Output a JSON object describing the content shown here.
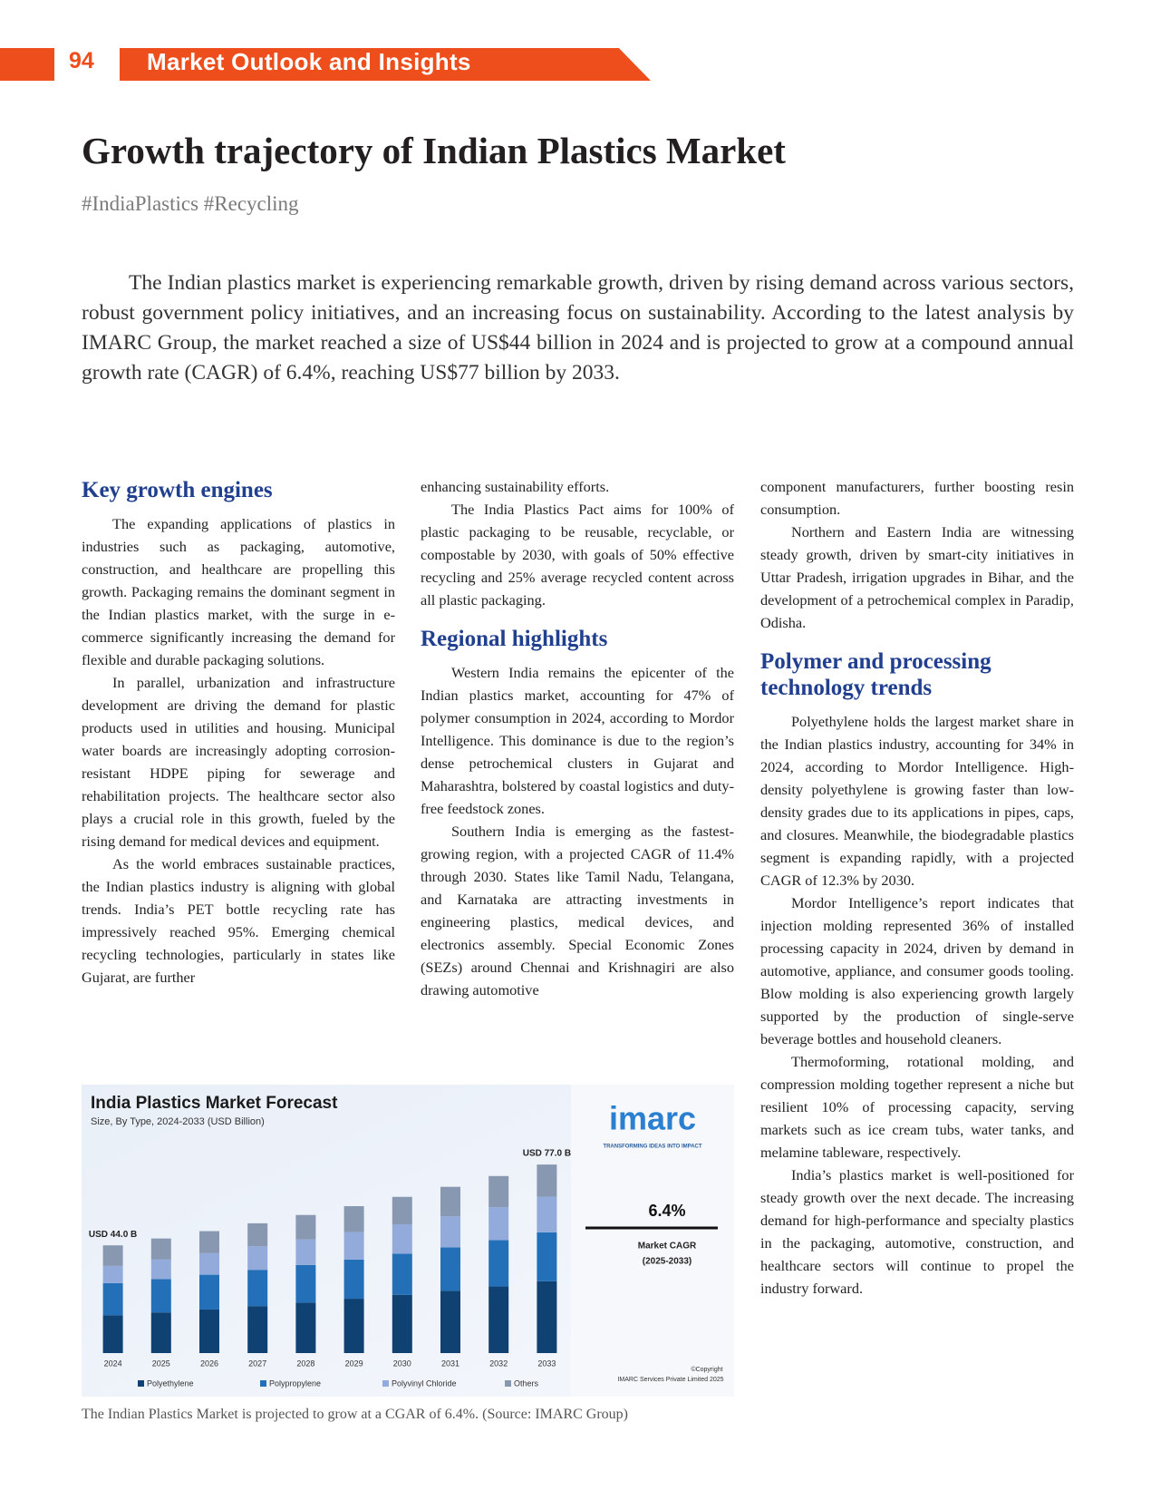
{
  "header": {
    "page_number": "94",
    "section": "Market Outlook and Insights"
  },
  "article": {
    "title": "Growth trajectory of Indian Plastics Market",
    "tags": "#IndiaPlastics #Recycling",
    "intro": "The Indian plastics market is experiencing remarkable growth, driven by rising demand across various sectors, robust government policy initiatives, and an increasing focus on sustainability. According to the latest analysis by IMARC Group, the market reached a size of US$44 billion in 2024 and is projected to grow at a compound annual growth rate (CAGR) of 6.4%, reaching US$77 billion by 2033.",
    "columns": [
      [
        {
          "type": "heading",
          "text": "Key growth engines"
        },
        {
          "type": "paragraph",
          "text": "The expanding applications of plastics in industries such as packaging, automotive, construction, and healthcare are propelling this growth. Packaging remains the dominant segment in the Indian plastics market, with the surge in e-commerce significantly increasing the demand for flexible and durable packaging solutions."
        },
        {
          "type": "paragraph",
          "text": "In parallel, urbanization and infrastructure development are driving the demand for plastic products used in utilities and housing. Municipal water boards are increasingly adopting corrosion-resistant HDPE piping for sewerage and rehabilitation projects. The healthcare sector also plays a crucial role in this growth, fueled by the rising demand for medical devices and equipment."
        },
        {
          "type": "paragraph",
          "text": "As the world embraces sustainable practices, the Indian plastics industry is aligning with global trends. India’s PET bottle recycling rate has impressively reached 95%. Emerging chemical recycling technologies, particularly in states like Gujarat, are further"
        }
      ],
      [
        {
          "type": "continuation",
          "text": "enhancing sustainability efforts."
        },
        {
          "type": "paragraph",
          "text": "The India Plastics Pact aims for 100% of plastic packaging to be reusable, recyclable, or compostable by 2030, with goals of 50% effective recycling and 25% average recycled content across all plastic packaging."
        },
        {
          "type": "heading",
          "text": "Regional highlights"
        },
        {
          "type": "paragraph",
          "text": "Western India remains the epicenter of the Indian plastics market, accounting for 47% of polymer consumption in 2024, according to Mordor Intelligence. This dominance is due to the region’s dense petrochemical clusters in Gujarat and Maharashtra, bolstered by coastal logistics and duty-free feedstock zones."
        },
        {
          "type": "paragraph",
          "text": "Southern India is emerging as the fastest-growing region, with a projected CAGR of 11.4% through 2030. States like Tamil Nadu, Telangana, and Karnataka are attracting investments in engineering plastics, medical devices, and electronics assembly. Special Economic Zones (SEZs) around Chennai and Krishnagiri are also drawing automotive"
        }
      ],
      [
        {
          "type": "continuation",
          "text": "component manufacturers, further boosting resin consumption."
        },
        {
          "type": "paragraph",
          "text": "Northern and Eastern India are witnessing steady growth, driven by smart-city initiatives in Uttar Pradesh, irrigation upgrades in Bihar, and the development of a petrochemical complex in Paradip, Odisha."
        },
        {
          "type": "heading",
          "text": "Polymer and processing technology trends"
        },
        {
          "type": "paragraph",
          "text": "Polyethylene holds the largest market share in the Indian plastics industry, accounting for 34% in 2024, according to Mordor Intelligence. High-density polyethylene is growing faster than low-density grades due to its applications in pipes, caps, and closures. Meanwhile, the biodegradable plastics segment is expanding rapidly, with a projected CAGR of 12.3% by 2030."
        },
        {
          "type": "paragraph",
          "text": "Mordor Intelligence’s report indicates that injection molding represented 36% of installed processing capacity in 2024, driven by demand in automotive, appliance, and consumer goods tooling. Blow molding is also experiencing growth largely supported by the production of single-serve beverage bottles and household cleaners."
        },
        {
          "type": "paragraph",
          "text": "Thermoforming, rotational molding, and compression molding together represent a niche but resilient 10% of processing capacity, serving markets such as ice cream tubs, water tanks, and melamine tableware, respectively."
        },
        {
          "type": "paragraph",
          "text": "India’s plastics market is well-positioned for steady growth over the next decade. The increasing demand for high-performance and specialty plastics in the packaging, automotive, construction, and healthcare sectors will continue to propel the industry forward."
        }
      ]
    ]
  },
  "chart_data": {
    "type": "stacked-bar",
    "title": "India Plastics Market Forecast",
    "subtitle": "Size, By Type, 2024-2033 (USD Billion)",
    "categories": [
      "2024",
      "2025",
      "2026",
      "2027",
      "2028",
      "2029",
      "2030",
      "2031",
      "2032",
      "2033"
    ],
    "series": [
      {
        "name": "Polyethylene",
        "color": "#0f4272",
        "values": [
          15.4,
          16.6,
          17.8,
          19.2,
          20.6,
          22.2,
          23.8,
          25.4,
          27.2,
          29.3
        ]
      },
      {
        "name": "Polypropylene",
        "color": "#2370b8",
        "values": [
          13.2,
          13.6,
          14.2,
          14.8,
          15.4,
          16.0,
          16.8,
          17.8,
          18.9,
          20.0
        ]
      },
      {
        "name": "Polyvinyl Chloride",
        "color": "#93abdb",
        "values": [
          7.0,
          8.0,
          8.8,
          9.6,
          10.4,
          11.2,
          12.0,
          12.7,
          13.5,
          14.6
        ]
      },
      {
        "name": "Others",
        "color": "#8898b0",
        "values": [
          8.4,
          8.6,
          9.0,
          9.4,
          10.0,
          10.6,
          11.2,
          12.0,
          12.7,
          13.1
        ]
      }
    ],
    "ylim": [
      0,
      80
    ],
    "annotations": [
      {
        "category": "2024",
        "value": 44,
        "text": "USD 44.0 B"
      },
      {
        "category": "2033",
        "value": 77,
        "text": "USD 77.0 B"
      }
    ],
    "brand": "imarc",
    "brand_tagline": "TRANSFORMING IDEAS INTO IMPACT",
    "callout": {
      "value": "6.4%",
      "label": "Market CAGR",
      "period": "(2025-2033)"
    },
    "copyright": [
      "©Copyright",
      "IMARC Services Private Limited 2025"
    ]
  },
  "figure_caption": "The Indian Plastics Market is projected to grow at a CGAR of 6.4%. (Source: IMARC Group)"
}
